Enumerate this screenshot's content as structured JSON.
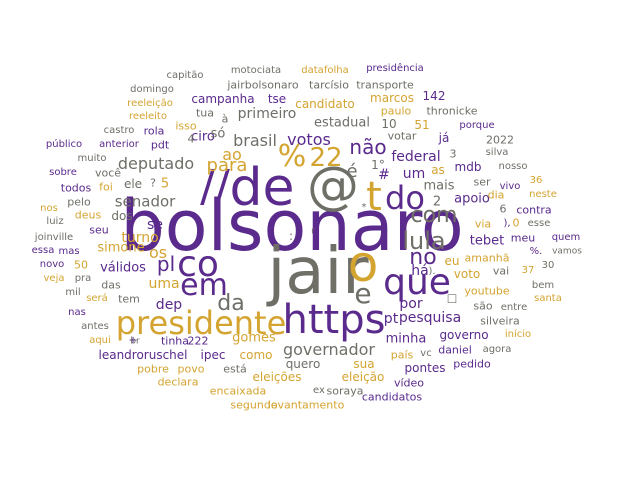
{
  "palette": {
    "purple": "#5a2a8c",
    "gold": "#d4a431",
    "gray": "#6f6f68"
  },
  "words": [
    {
      "text": "bolsonaro",
      "color": "purple",
      "weight": 70
    },
    {
      "text": "jair",
      "color": "gray",
      "weight": 64
    },
    {
      "text": "de",
      "color": "purple",
      "weight": 52
    },
    {
      "text": "@",
      "color": "gray",
      "weight": 52
    },
    {
      "text": "o",
      "color": "gold",
      "weight": 50
    },
    {
      "text": "https",
      "color": "purple",
      "weight": 40
    },
    {
      "text": "presidente",
      "color": "gold",
      "weight": 32
    },
    {
      "text": "que",
      "color": "purple",
      "weight": 36
    },
    {
      "text": "co",
      "color": "purple",
      "weight": 36
    },
    {
      "text": "em",
      "color": "purple",
      "weight": 30
    },
    {
      "text": "//",
      "color": "purple",
      "weight": 44
    },
    {
      "text": "t",
      "color": "gold",
      "weight": 40
    },
    {
      "text": "do",
      "color": "purple",
      "weight": 32
    },
    {
      "text": "e",
      "color": "gray",
      "weight": 28
    },
    {
      "text": "%",
      "color": "gold",
      "weight": 30
    },
    {
      "text": "22",
      "color": "gold",
      "weight": 26
    },
    {
      "text": "lula",
      "color": "gray",
      "weight": 24
    },
    {
      "text": "com",
      "color": "gray",
      "weight": 22
    },
    {
      "text": "da",
      "color": "gray",
      "weight": 22
    },
    {
      "text": "não",
      "color": "purple",
      "weight": 20
    },
    {
      "text": "no",
      "color": "purple",
      "weight": 22
    },
    {
      "text": "pl",
      "color": "purple",
      "weight": 20
    },
    {
      "text": "para",
      "color": "gold",
      "weight": 18
    },
    {
      "text": "votos",
      "color": "purple",
      "weight": 16
    },
    {
      "text": "brasil",
      "color": "gray",
      "weight": 16
    },
    {
      "text": "governador",
      "color": "gray",
      "weight": 16
    },
    {
      "text": "deputado",
      "color": "gray",
      "weight": 16
    },
    {
      "text": "senador",
      "color": "gray",
      "weight": 15
    },
    {
      "text": "federal",
      "color": "purple",
      "weight": 14
    },
    {
      "text": "pesquisa",
      "color": "purple",
      "weight": 14
    },
    {
      "text": "um",
      "color": "purple",
      "weight": 14
    },
    {
      "text": "há",
      "color": "purple",
      "weight": 14
    },
    {
      "text": "por",
      "color": "purple",
      "weight": 14
    },
    {
      "text": "pt",
      "color": "purple",
      "weight": 14
    },
    {
      "text": "ao",
      "color": "gold",
      "weight": 16
    },
    {
      "text": "é",
      "color": "gray",
      "weight": 18
    },
    {
      "text": "turno",
      "color": "gold",
      "weight": 14
    },
    {
      "text": "os",
      "color": "gold",
      "weight": 16
    },
    {
      "text": "uma",
      "color": "gold",
      "weight": 14
    },
    {
      "text": "dep",
      "color": "purple",
      "weight": 14
    },
    {
      "text": "primeiro",
      "color": "gray",
      "weight": 14
    },
    {
      "text": "estadual",
      "color": "gray",
      "weight": 13
    },
    {
      "text": "ciro",
      "color": "purple",
      "weight": 13
    },
    {
      "text": "só",
      "color": "gray",
      "weight": 13
    },
    {
      "text": "apoio",
      "color": "purple",
      "weight": 13
    },
    {
      "text": "mais",
      "color": "gray",
      "weight": 13
    },
    {
      "text": "tebet",
      "color": "purple",
      "weight": 13
    },
    {
      "text": "se",
      "color": "purple",
      "weight": 14
    },
    {
      "text": "simone",
      "color": "gold",
      "weight": 13
    },
    {
      "text": "válidos",
      "color": "purple",
      "weight": 13
    },
    {
      "text": "gomes",
      "color": "gold",
      "weight": 13
    },
    {
      "text": "minha",
      "color": "purple",
      "weight": 13
    },
    {
      "text": "governo",
      "color": "purple",
      "weight": 12
    },
    {
      "text": "mdb",
      "color": "purple",
      "weight": 12
    },
    {
      "text": "eu",
      "color": "gold",
      "weight": 12
    },
    {
      "text": "voto",
      "color": "gold",
      "weight": 12
    },
    {
      "text": "candidato",
      "color": "gold",
      "weight": 12
    },
    {
      "text": "campanha",
      "color": "purple",
      "weight": 12
    },
    {
      "text": "tse",
      "color": "purple",
      "weight": 12
    },
    {
      "text": "marcos",
      "color": "gold",
      "weight": 12
    },
    {
      "text": "142",
      "color": "purple",
      "weight": 12
    },
    {
      "text": "eleições",
      "color": "gold",
      "weight": 12
    },
    {
      "text": "eleição",
      "color": "gold",
      "weight": 12
    },
    {
      "text": "pontes",
      "color": "purple",
      "weight": 12
    },
    {
      "text": "ipec",
      "color": "purple",
      "weight": 12
    },
    {
      "text": "leandroruschel",
      "color": "purple",
      "weight": 12
    },
    {
      "text": "quero",
      "color": "gray",
      "weight": 12
    },
    {
      "text": "sua",
      "color": "gold",
      "weight": 12
    },
    {
      "text": "como",
      "color": "gold",
      "weight": 12
    },
    {
      "text": "ele",
      "color": "gray",
      "weight": 12
    },
    {
      "text": "dos",
      "color": "gray",
      "weight": 12
    },
    {
      "text": "#",
      "color": "purple",
      "weight": 14
    },
    {
      "text": "1°",
      "color": "gray",
      "weight": 12
    },
    {
      "text": "10",
      "color": "gray",
      "weight": 12
    },
    {
      "text": "51",
      "color": "gold",
      "weight": 12
    },
    {
      "text": "votar",
      "color": "gray",
      "weight": 11
    },
    {
      "text": "já",
      "color": "purple",
      "weight": 12
    },
    {
      "text": "as",
      "color": "gold",
      "weight": 12
    },
    {
      "text": "ser",
      "color": "gray",
      "weight": 11
    },
    {
      "text": "2",
      "color": "gray",
      "weight": 13
    },
    {
      "text": "3",
      "color": "gray",
      "weight": 11
    },
    {
      "text": "5",
      "color": "gold",
      "weight": 13
    },
    {
      "text": "6",
      "color": "gray",
      "weight": 11
    },
    {
      "text": "contra",
      "color": "purple",
      "weight": 11
    },
    {
      "text": "via",
      "color": "gold",
      "weight": 11
    },
    {
      "text": "0",
      "color": "gold",
      "weight": 11
    },
    {
      "text": "amanhã",
      "color": "gold",
      "weight": 11
    },
    {
      "text": "youtube",
      "color": "gold",
      "weight": 11
    },
    {
      "text": "daniel",
      "color": "purple",
      "weight": 11
    },
    {
      "text": "silveira",
      "color": "gray",
      "weight": 11
    },
    {
      "text": "são",
      "color": "gray",
      "weight": 11
    },
    {
      "text": "entre",
      "color": "gray",
      "weight": 10
    },
    {
      "text": "agora",
      "color": "gray",
      "weight": 10
    },
    {
      "text": "pedido",
      "color": "purple",
      "weight": 11
    },
    {
      "text": "vídeo",
      "color": "purple",
      "weight": 11
    },
    {
      "text": "país",
      "color": "gold",
      "weight": 11
    },
    {
      "text": "vc",
      "color": "gray",
      "weight": 10
    },
    {
      "text": "candidatos",
      "color": "purple",
      "weight": 11
    },
    {
      "text": "soraya",
      "color": "gray",
      "weight": 11
    },
    {
      "text": "ex",
      "color": "gray",
      "weight": 10
    },
    {
      "text": "levantamento",
      "color": "gold",
      "weight": 11
    },
    {
      "text": "segundo",
      "color": "gold",
      "weight": 11
    },
    {
      "text": "encaixada",
      "color": "gold",
      "weight": 11
    },
    {
      "text": "está",
      "color": "gray",
      "weight": 11
    },
    {
      "text": "declara",
      "color": "gold",
      "weight": 11
    },
    {
      "text": "pobre",
      "color": "gold",
      "weight": 11
    },
    {
      "text": "povo",
      "color": "gold",
      "weight": 11
    },
    {
      "text": "tinha",
      "color": "purple",
      "weight": 11
    },
    {
      "text": "222",
      "color": "purple",
      "weight": 11
    },
    {
      "text": "+",
      "color": "purple",
      "weight": 11
    },
    {
      "text": "aqui",
      "color": "gold",
      "weight": 10
    },
    {
      "text": "antes",
      "color": "gray",
      "weight": 10
    },
    {
      "text": "nas",
      "color": "purple",
      "weight": 10
    },
    {
      "text": "será",
      "color": "gold",
      "weight": 10
    },
    {
      "text": "tem",
      "color": "gray",
      "weight": 11
    },
    {
      "text": "das",
      "color": "gray",
      "weight": 11
    },
    {
      "text": "mil",
      "color": "gray",
      "weight": 10
    },
    {
      "text": "veja",
      "color": "gold",
      "weight": 10
    },
    {
      "text": "pra",
      "color": "gray",
      "weight": 10
    },
    {
      "text": "50",
      "color": "gold",
      "weight": 11
    },
    {
      "text": "novo",
      "color": "purple",
      "weight": 10
    },
    {
      "text": "essa",
      "color": "purple",
      "weight": 10
    },
    {
      "text": "mas",
      "color": "purple",
      "weight": 10
    },
    {
      "text": "joinville",
      "color": "gray",
      "weight": 10
    },
    {
      "text": "seu",
      "color": "purple",
      "weight": 11
    },
    {
      "text": "luiz",
      "color": "gray",
      "weight": 10
    },
    {
      "text": "pelo",
      "color": "gray",
      "weight": 11
    },
    {
      "text": "deus",
      "color": "gold",
      "weight": 11
    },
    {
      "text": "nos",
      "color": "gold",
      "weight": 10
    },
    {
      "text": "todos",
      "color": "purple",
      "weight": 11
    },
    {
      "text": "foi",
      "color": "gold",
      "weight": 11
    },
    {
      "text": "sobre",
      "color": "purple",
      "weight": 10
    },
    {
      "text": "você",
      "color": "gray",
      "weight": 11
    },
    {
      "text": "muito",
      "color": "gray",
      "weight": 10
    },
    {
      "text": "pdt",
      "color": "purple",
      "weight": 11
    },
    {
      "text": "público",
      "color": "purple",
      "weight": 10
    },
    {
      "text": "anterior",
      "color": "purple",
      "weight": 10
    },
    {
      "text": "castro",
      "color": "gray",
      "weight": 10
    },
    {
      "text": "rola",
      "color": "purple",
      "weight": 11
    },
    {
      "text": "reeleito",
      "color": "gold",
      "weight": 10
    },
    {
      "text": "reeleição",
      "color": "gold",
      "weight": 10
    },
    {
      "text": "domingo",
      "color": "gray",
      "weight": 10
    },
    {
      "text": "capitão",
      "color": "gray",
      "weight": 10
    },
    {
      "text": "tua",
      "color": "gray",
      "weight": 11
    },
    {
      "text": "isso",
      "color": "gold",
      "weight": 11
    },
    {
      "text": "à",
      "color": "gray",
      "weight": 11
    },
    {
      "text": "4",
      "color": "gray",
      "weight": 11
    },
    {
      "text": "jairbolsonaro",
      "color": "gray",
      "weight": 11
    },
    {
      "text": "tarcísio",
      "color": "gray",
      "weight": 11
    },
    {
      "text": "transporte",
      "color": "gray",
      "weight": 11
    },
    {
      "text": "motociata",
      "color": "gray",
      "weight": 10
    },
    {
      "text": "datafolha",
      "color": "gold",
      "weight": 10
    },
    {
      "text": "presidência",
      "color": "purple",
      "weight": 10
    },
    {
      "text": "paulo",
      "color": "gold",
      "weight": 11
    },
    {
      "text": "thronicke",
      "color": "gray",
      "weight": 11
    },
    {
      "text": "porque",
      "color": "purple",
      "weight": 10
    },
    {
      "text": "2022",
      "color": "gray",
      "weight": 11
    },
    {
      "text": "silva",
      "color": "gray",
      "weight": 10
    },
    {
      "text": "nosso",
      "color": "gray",
      "weight": 10
    },
    {
      "text": "36",
      "color": "gold",
      "weight": 10
    },
    {
      "text": "vivo",
      "color": "purple",
      "weight": 10
    },
    {
      "text": "neste",
      "color": "gold",
      "weight": 10
    },
    {
      "text": "dia",
      "color": "gold",
      "weight": 11
    },
    {
      "text": "esse",
      "color": "gray",
      "weight": 10
    },
    {
      "text": "meu",
      "color": "purple",
      "weight": 11
    },
    {
      "text": "quem",
      "color": "purple",
      "weight": 10
    },
    {
      "text": "vamos",
      "color": "gray",
      "weight": 9
    },
    {
      "text": "%.",
      "color": "purple",
      "weight": 10
    },
    {
      "text": "30",
      "color": "gray",
      "weight": 10
    },
    {
      "text": "37",
      "color": "gold",
      "weight": 10
    },
    {
      "text": "vai",
      "color": "gray",
      "weight": 11
    },
    {
      "text": "bem",
      "color": "gray",
      "weight": 10
    },
    {
      "text": "santa",
      "color": "gold",
      "weight": 10
    },
    {
      "text": "início",
      "color": "gold",
      "weight": 10
    },
    {
      "text": "),",
      "color": "purple",
      "weight": 10
    },
    {
      "text": ").",
      "color": "gray",
      "weight": 10
    },
    {
      "text": "?",
      "color": "gray",
      "weight": 11
    },
    {
      "text": "r",
      "color": "gray",
      "weight": 9
    },
    {
      "text": "*",
      "color": "gray",
      "weight": 10
    },
    {
      "text": ":",
      "color": "gray",
      "weight": 12
    },
    {
      "text": "br",
      "color": "gray",
      "weight": 9
    },
    {
      "text": "□",
      "color": "gray",
      "weight": 11
    }
  ]
}
